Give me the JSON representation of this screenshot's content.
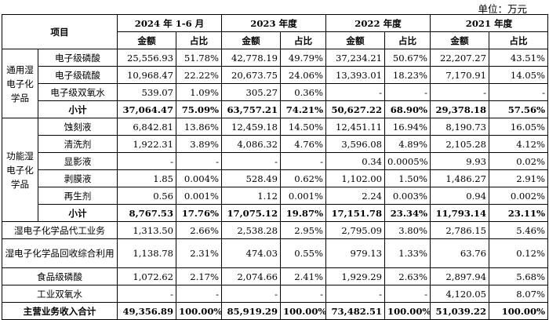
{
  "unit": "单位：万元",
  "header": {
    "item": "项目",
    "periods": [
      "2024 年 1-6 月",
      "2023 年度",
      "2022 年度",
      "2021 年度"
    ],
    "amount": "金额",
    "ratio": "占比"
  },
  "groups": {
    "general": "通用湿电子化学品",
    "functional": "功能湿电子化学品"
  },
  "rows": {
    "r1": {
      "label": "电子级磷酸",
      "v": [
        "25,556.93",
        "51.78%",
        "42,778.19",
        "49.79%",
        "37,234.21",
        "50.67%",
        "22,207.27",
        "43.51%"
      ]
    },
    "r2": {
      "label": "电子级硫酸",
      "v": [
        "10,968.47",
        "22.22%",
        "20,673.75",
        "24.06%",
        "13,393.01",
        "18.23%",
        "7,170.91",
        "14.05%"
      ]
    },
    "r3": {
      "label": "电子级双氧水",
      "v": [
        "539.07",
        "1.09%",
        "305.27",
        "0.36%",
        "-",
        "-",
        "-",
        "-"
      ]
    },
    "r4": {
      "label": "小计",
      "v": [
        "37,064.47",
        "75.09%",
        "63,757.21",
        "74.21%",
        "50,627.22",
        "68.90%",
        "29,378.18",
        "57.56%"
      ]
    },
    "r5": {
      "label": "蚀刻液",
      "v": [
        "6,842.81",
        "13.86%",
        "12,459.18",
        "14.50%",
        "12,451.11",
        "16.94%",
        "8,190.73",
        "16.05%"
      ]
    },
    "r6": {
      "label": "清洗剂",
      "v": [
        "1,922.31",
        "3.89%",
        "4,086.32",
        "4.76%",
        "3,596.08",
        "4.89%",
        "2,105.28",
        "4.12%"
      ]
    },
    "r7": {
      "label": "显影液",
      "v": [
        "-",
        "-",
        "-",
        "-",
        "0.34",
        "0.0005%",
        "9.93",
        "0.02%"
      ]
    },
    "r8": {
      "label": "剥膜液",
      "v": [
        "1.85",
        "0.004%",
        "528.49",
        "0.62%",
        "1,102.00",
        "1.50%",
        "1,486.27",
        "2.91%"
      ]
    },
    "r9": {
      "label": "再生剂",
      "v": [
        "0.56",
        "0.001%",
        "1.12",
        "0.001%",
        "2.24",
        "0.003%",
        "0.94",
        "0.002%"
      ]
    },
    "r10": {
      "label": "小计",
      "v": [
        "8,767.53",
        "17.76%",
        "17,075.12",
        "19.87%",
        "17,151.78",
        "23.34%",
        "11,793.14",
        "23.11%"
      ]
    },
    "r11": {
      "label": "湿电子化学品代工业务",
      "v": [
        "1,313.50",
        "2.66%",
        "2,538.28",
        "2.95%",
        "2,795.09",
        "3.80%",
        "2,786.15",
        "5.46%"
      ]
    },
    "r12": {
      "label": "湿电子化学品回收综合利用",
      "v": [
        "1,138.78",
        "2.31%",
        "474.03",
        "0.55%",
        "979.13",
        "1.33%",
        "63.76",
        "0.12%"
      ]
    },
    "r13": {
      "label": "食品级磷酸",
      "v": [
        "1,072.62",
        "2.17%",
        "2,074.66",
        "2.41%",
        "1,929.29",
        "2.63%",
        "2,897.94",
        "5.68%"
      ]
    },
    "r14": {
      "label": "工业双氧水",
      "v": [
        "-",
        "-",
        "-",
        "-",
        "-",
        "-",
        "4,120.05",
        "8.07%"
      ]
    },
    "r15": {
      "label": "主营业务收入合计",
      "v": [
        "49,356.89",
        "100.00%",
        "85,919.29",
        "100.00%",
        "73,482.51",
        "100.00%",
        "51,039.22",
        "100.00%"
      ]
    }
  }
}
